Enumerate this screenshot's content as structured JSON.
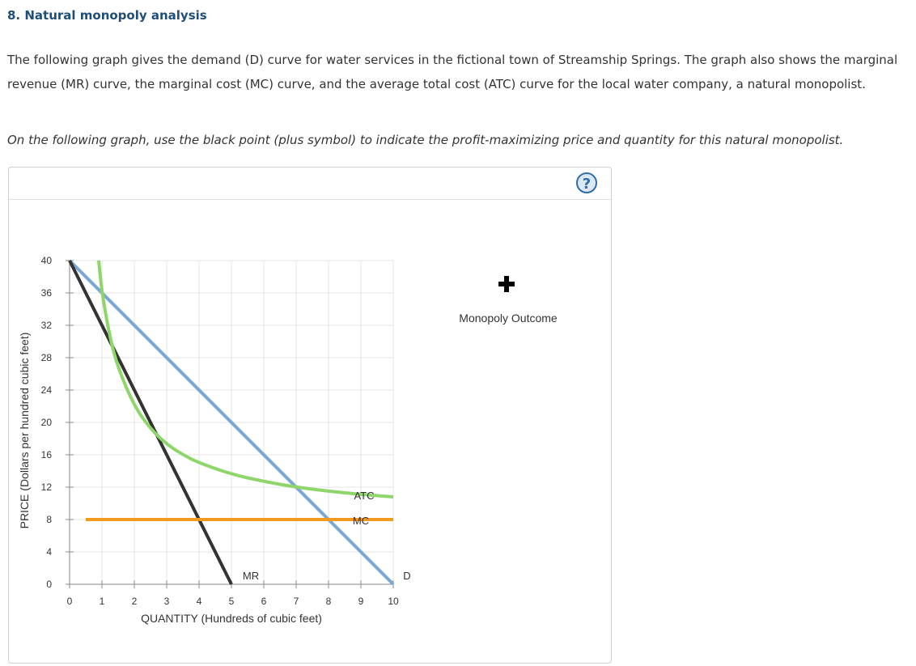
{
  "question": {
    "title": "8. Natural monopoly analysis",
    "paragraph": "The following graph gives the demand (D) curve for water services in the fictional town of Streamship Springs. The graph also shows the marginal revenue (MR) curve, the marginal cost (MC) curve, and the average total cost (ATC) curve for the local water company, a natural monopolist.",
    "instruction": "On the following graph, use the black point (plus symbol) to indicate the profit-maximizing price and quantity for this natural monopolist."
  },
  "panel": {
    "help_label": "?",
    "palette": {
      "legend_label": "Monopoly Outcome",
      "icon": "plus-icon",
      "color": "#000000"
    }
  },
  "chart_data": {
    "type": "line",
    "xlabel": "QUANTITY (Hundreds of cubic feet)",
    "ylabel": "PRICE (Dollars per hundred cubic feet)",
    "xlim": [
      0,
      10
    ],
    "ylim": [
      0,
      40
    ],
    "x_ticks": [
      "0",
      "1",
      "2",
      "3",
      "4",
      "5",
      "6",
      "7",
      "8",
      "9",
      "10"
    ],
    "y_ticks": [
      "0",
      "4",
      "8",
      "12",
      "16",
      "20",
      "24",
      "28",
      "32",
      "36",
      "40"
    ],
    "grid": true,
    "series": [
      {
        "name": "D",
        "color": "#7ba7d6",
        "points": [
          [
            0,
            40
          ],
          [
            10,
            0
          ]
        ]
      },
      {
        "name": "MR",
        "color": "#333333",
        "points": [
          [
            0,
            40
          ],
          [
            5,
            0
          ]
        ]
      },
      {
        "name": "MC",
        "color": "#f29a1e",
        "points": [
          [
            0.5,
            8
          ],
          [
            10,
            8
          ]
        ]
      },
      {
        "name": "ATC",
        "color": "#8ed66a",
        "points": [
          [
            0.9,
            40
          ],
          [
            1.0,
            36.0
          ],
          [
            1.25,
            30.4
          ],
          [
            1.5,
            26.7
          ],
          [
            2.0,
            22.0
          ],
          [
            2.5,
            19.2
          ],
          [
            3.0,
            17.3
          ],
          [
            3.5,
            16.0
          ],
          [
            4.0,
            15.0
          ],
          [
            5.0,
            13.6
          ],
          [
            6.0,
            12.7
          ],
          [
            7.0,
            12.0
          ],
          [
            8.0,
            11.5
          ],
          [
            9.0,
            11.1
          ],
          [
            10.0,
            10.8
          ]
        ]
      }
    ],
    "curve_labels": [
      "MR",
      "D",
      "ATC",
      "MC"
    ]
  }
}
